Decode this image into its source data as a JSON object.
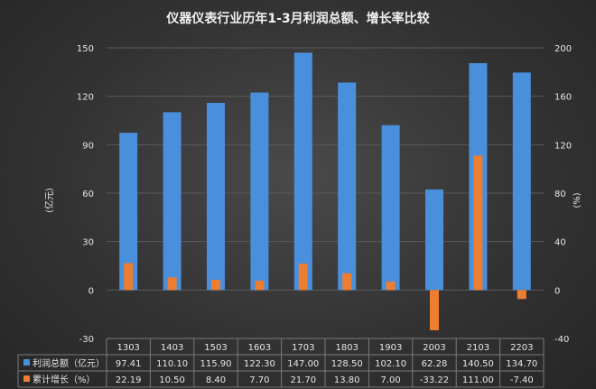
{
  "chart_data": {
    "type": "bar",
    "title": "仪器仪表行业历年1-3月利润总额、增长率比较",
    "categories": [
      "1303",
      "1403",
      "1503",
      "1603",
      "1703",
      "1803",
      "1903",
      "2003",
      "2103",
      "2203"
    ],
    "series": [
      {
        "name": "利润总额（亿元）",
        "axis": "left",
        "color": "#4a8fdc",
        "values": [
          97.41,
          110.1,
          115.9,
          122.3,
          147.0,
          128.5,
          102.1,
          62.28,
          140.5,
          134.7
        ],
        "labels": [
          "97.41",
          "110.10",
          "115.90",
          "122.30",
          "147.00",
          "128.50",
          "102.10",
          "62.28",
          "140.50",
          "134.70"
        ]
      },
      {
        "name": "累计增长（%）",
        "axis": "right",
        "color": "#ed7d31",
        "values": [
          22.19,
          10.5,
          8.4,
          7.7,
          21.7,
          13.8,
          7.0,
          -33.22,
          111.0,
          -7.4
        ],
        "labels": [
          "22.19",
          "10.50",
          "8.40",
          "7.70",
          "21.70",
          "13.80",
          "7.00",
          "-33.22",
          "111.00",
          "-7.40"
        ]
      }
    ],
    "y_left": {
      "label": "(亿元)",
      "ylim": [
        -30,
        150
      ],
      "ticks": [
        "-30",
        "0",
        "30",
        "60",
        "90",
        "120",
        "150"
      ]
    },
    "y_right": {
      "label": "(%)",
      "ylim": [
        -40,
        200
      ],
      "ticks": [
        "-40",
        "0",
        "40",
        "80",
        "120",
        "160",
        "200"
      ]
    },
    "grid": true,
    "legend": "data-table"
  }
}
